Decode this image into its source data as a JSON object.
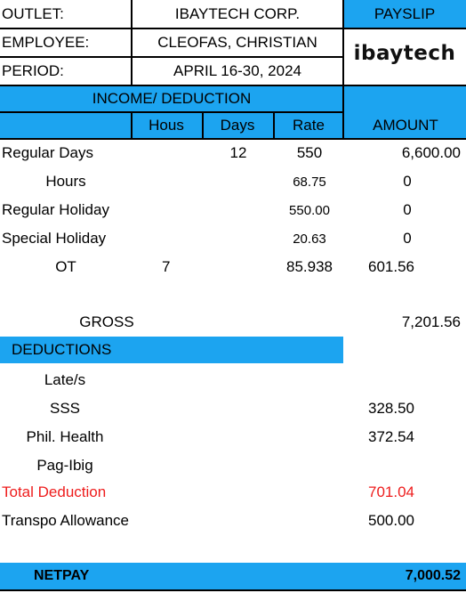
{
  "header": {
    "outlet_label": "OUTLET:",
    "outlet_value": "IBAYTECH CORP.",
    "payslip_label": "PAYSLIP",
    "employee_label": "EMPLOYEE:",
    "employee_value": "CLEOFAS, CHRISTIAN",
    "period_label": "PERIOD:",
    "period_value": "APRIL 16-30, 2024",
    "logo_text": "ibaytech"
  },
  "table_header": {
    "section_title": "INCOME/ DEDUCTION",
    "col_hours": "Hous",
    "col_days": "Days",
    "col_rate": "Rate",
    "col_amount": "AMOUNT"
  },
  "income": [
    {
      "label": "Regular Days",
      "hours": "",
      "days": "12",
      "rate": "550",
      "amount": "6,600.00"
    },
    {
      "label": "Hours",
      "hours": "",
      "days": "",
      "rate": "68.75",
      "amount": "0"
    },
    {
      "label": "Regular Holiday",
      "hours": "",
      "days": "",
      "rate": "550.00",
      "amount": "0"
    },
    {
      "label": "Special Holiday",
      "hours": "",
      "days": "",
      "rate": "20.63",
      "amount": "0"
    },
    {
      "label": "OT",
      "hours": "7",
      "days": "",
      "rate": "85.938",
      "amount": "601.56"
    }
  ],
  "gross": {
    "label": "GROSS",
    "amount": "7,201.56"
  },
  "deductions": {
    "title": "DEDUCTIONS",
    "items": [
      {
        "label": "Late/s",
        "amount": ""
      },
      {
        "label": "SSS",
        "amount": "328.50"
      },
      {
        "label": "Phil. Health",
        "amount": "372.54"
      },
      {
        "label": "Pag-Ibig",
        "amount": ""
      }
    ]
  },
  "total_deduction": {
    "label": "Total Deduction",
    "amount": "701.04"
  },
  "allowance": {
    "label": "Transpo Allowance",
    "amount": "500.00"
  },
  "netpay": {
    "label": "NETPAY",
    "amount": "7,000.52"
  },
  "colors": {
    "header_blue": "#1ca4f0",
    "total_deduction_red": "#ee1c1c"
  }
}
